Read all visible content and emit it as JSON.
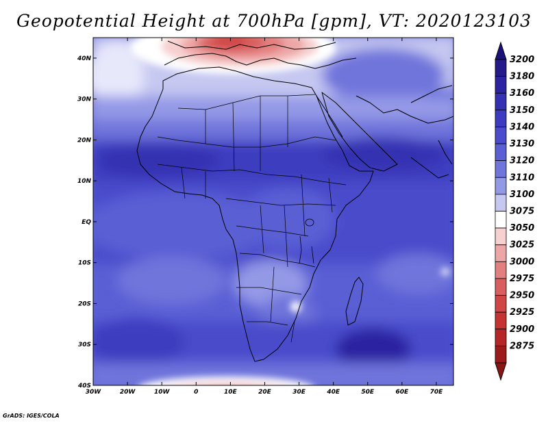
{
  "title": "Geopotential Height at 700hPa [gpm], VT: 2020123103",
  "credit": "GrADS: IGES/COLA",
  "map": {
    "lon_range": [
      -30,
      75
    ],
    "lat_range": [
      -40,
      45
    ],
    "lon_ticks": [
      {
        "value": -30,
        "label": "30W"
      },
      {
        "value": -20,
        "label": "20W"
      },
      {
        "value": -10,
        "label": "10W"
      },
      {
        "value": 0,
        "label": "0"
      },
      {
        "value": 10,
        "label": "10E"
      },
      {
        "value": 20,
        "label": "20E"
      },
      {
        "value": 30,
        "label": "30E"
      },
      {
        "value": 40,
        "label": "40E"
      },
      {
        "value": 50,
        "label": "50E"
      },
      {
        "value": 60,
        "label": "60E"
      },
      {
        "value": 70,
        "label": "70E"
      }
    ],
    "lat_ticks": [
      {
        "value": 40,
        "label": "40N"
      },
      {
        "value": 30,
        "label": "30N"
      },
      {
        "value": 20,
        "label": "20N"
      },
      {
        "value": 10,
        "label": "10N"
      },
      {
        "value": 0,
        "label": "EQ"
      },
      {
        "value": -10,
        "label": "10S"
      },
      {
        "value": -20,
        "label": "20S"
      },
      {
        "value": -30,
        "label": "30S"
      },
      {
        "value": -40,
        "label": "40S"
      }
    ]
  },
  "colorbar": {
    "levels": [
      {
        "label": "3200",
        "color": "#241a8a"
      },
      {
        "label": "3180",
        "color": "#2c23a0"
      },
      {
        "label": "3160",
        "color": "#3530b2"
      },
      {
        "label": "3150",
        "color": "#3d3cc0"
      },
      {
        "label": "3140",
        "color": "#4a4ccb"
      },
      {
        "label": "3130",
        "color": "#5a5fd4"
      },
      {
        "label": "3120",
        "color": "#7075db"
      },
      {
        "label": "3110",
        "color": "#9499e6"
      },
      {
        "label": "3100",
        "color": "#c6c8f1"
      },
      {
        "label": "3075",
        "color": "#ffffff"
      },
      {
        "label": "3050",
        "color": "#f7d0d0"
      },
      {
        "label": "3025",
        "color": "#eda6a6"
      },
      {
        "label": "3000",
        "color": "#e27f7f"
      },
      {
        "label": "2975",
        "color": "#d95f5f"
      },
      {
        "label": "2950",
        "color": "#d04646"
      },
      {
        "label": "2925",
        "color": "#c63333"
      },
      {
        "label": "2900",
        "color": "#b52626"
      },
      {
        "label": "2875",
        "color": "#9c1c1c"
      }
    ],
    "top_cap_color": "#1a117a",
    "bottom_cap_color": "#8a1515"
  }
}
